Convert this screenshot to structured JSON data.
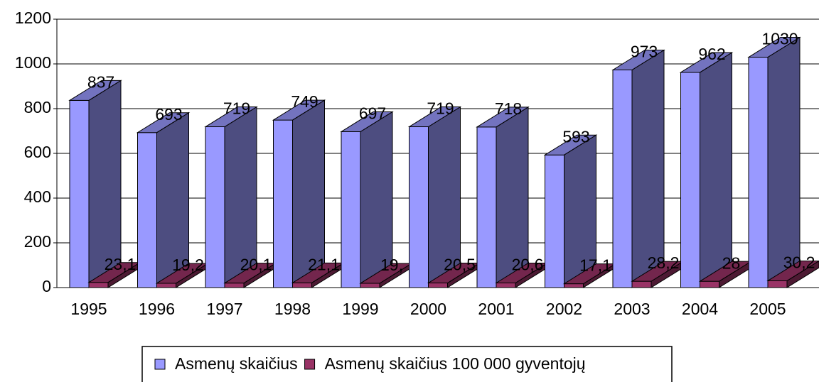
{
  "chart_data": {
    "type": "bar3d",
    "categories": [
      "1995",
      "1996",
      "1997",
      "1998",
      "1999",
      "2000",
      "2001",
      "2002",
      "2003",
      "2004",
      "2005"
    ],
    "series": [
      {
        "name": "Asmenų skaičius",
        "color": "#9999ff",
        "values": [
          837,
          693,
          719,
          749,
          697,
          719,
          718,
          593,
          973,
          962,
          1030
        ]
      },
      {
        "name": "Asmenų skaičius 100 000 gyventojų",
        "color": "#993366",
        "values": [
          23.1,
          19.2,
          20.1,
          21.1,
          19,
          20.5,
          20.6,
          17.1,
          28.2,
          28,
          30.2
        ],
        "value_labels": [
          "23,1",
          "19,2",
          "20,1",
          "21,1",
          "19,",
          "20,5",
          "20,6",
          "17,1",
          "28,2",
          "28",
          "30,2"
        ]
      }
    ],
    "ylim": [
      0,
      1200
    ],
    "yticks": [
      0,
      200,
      400,
      600,
      800,
      1000,
      1200
    ],
    "grid": true,
    "legend": "bottom"
  }
}
